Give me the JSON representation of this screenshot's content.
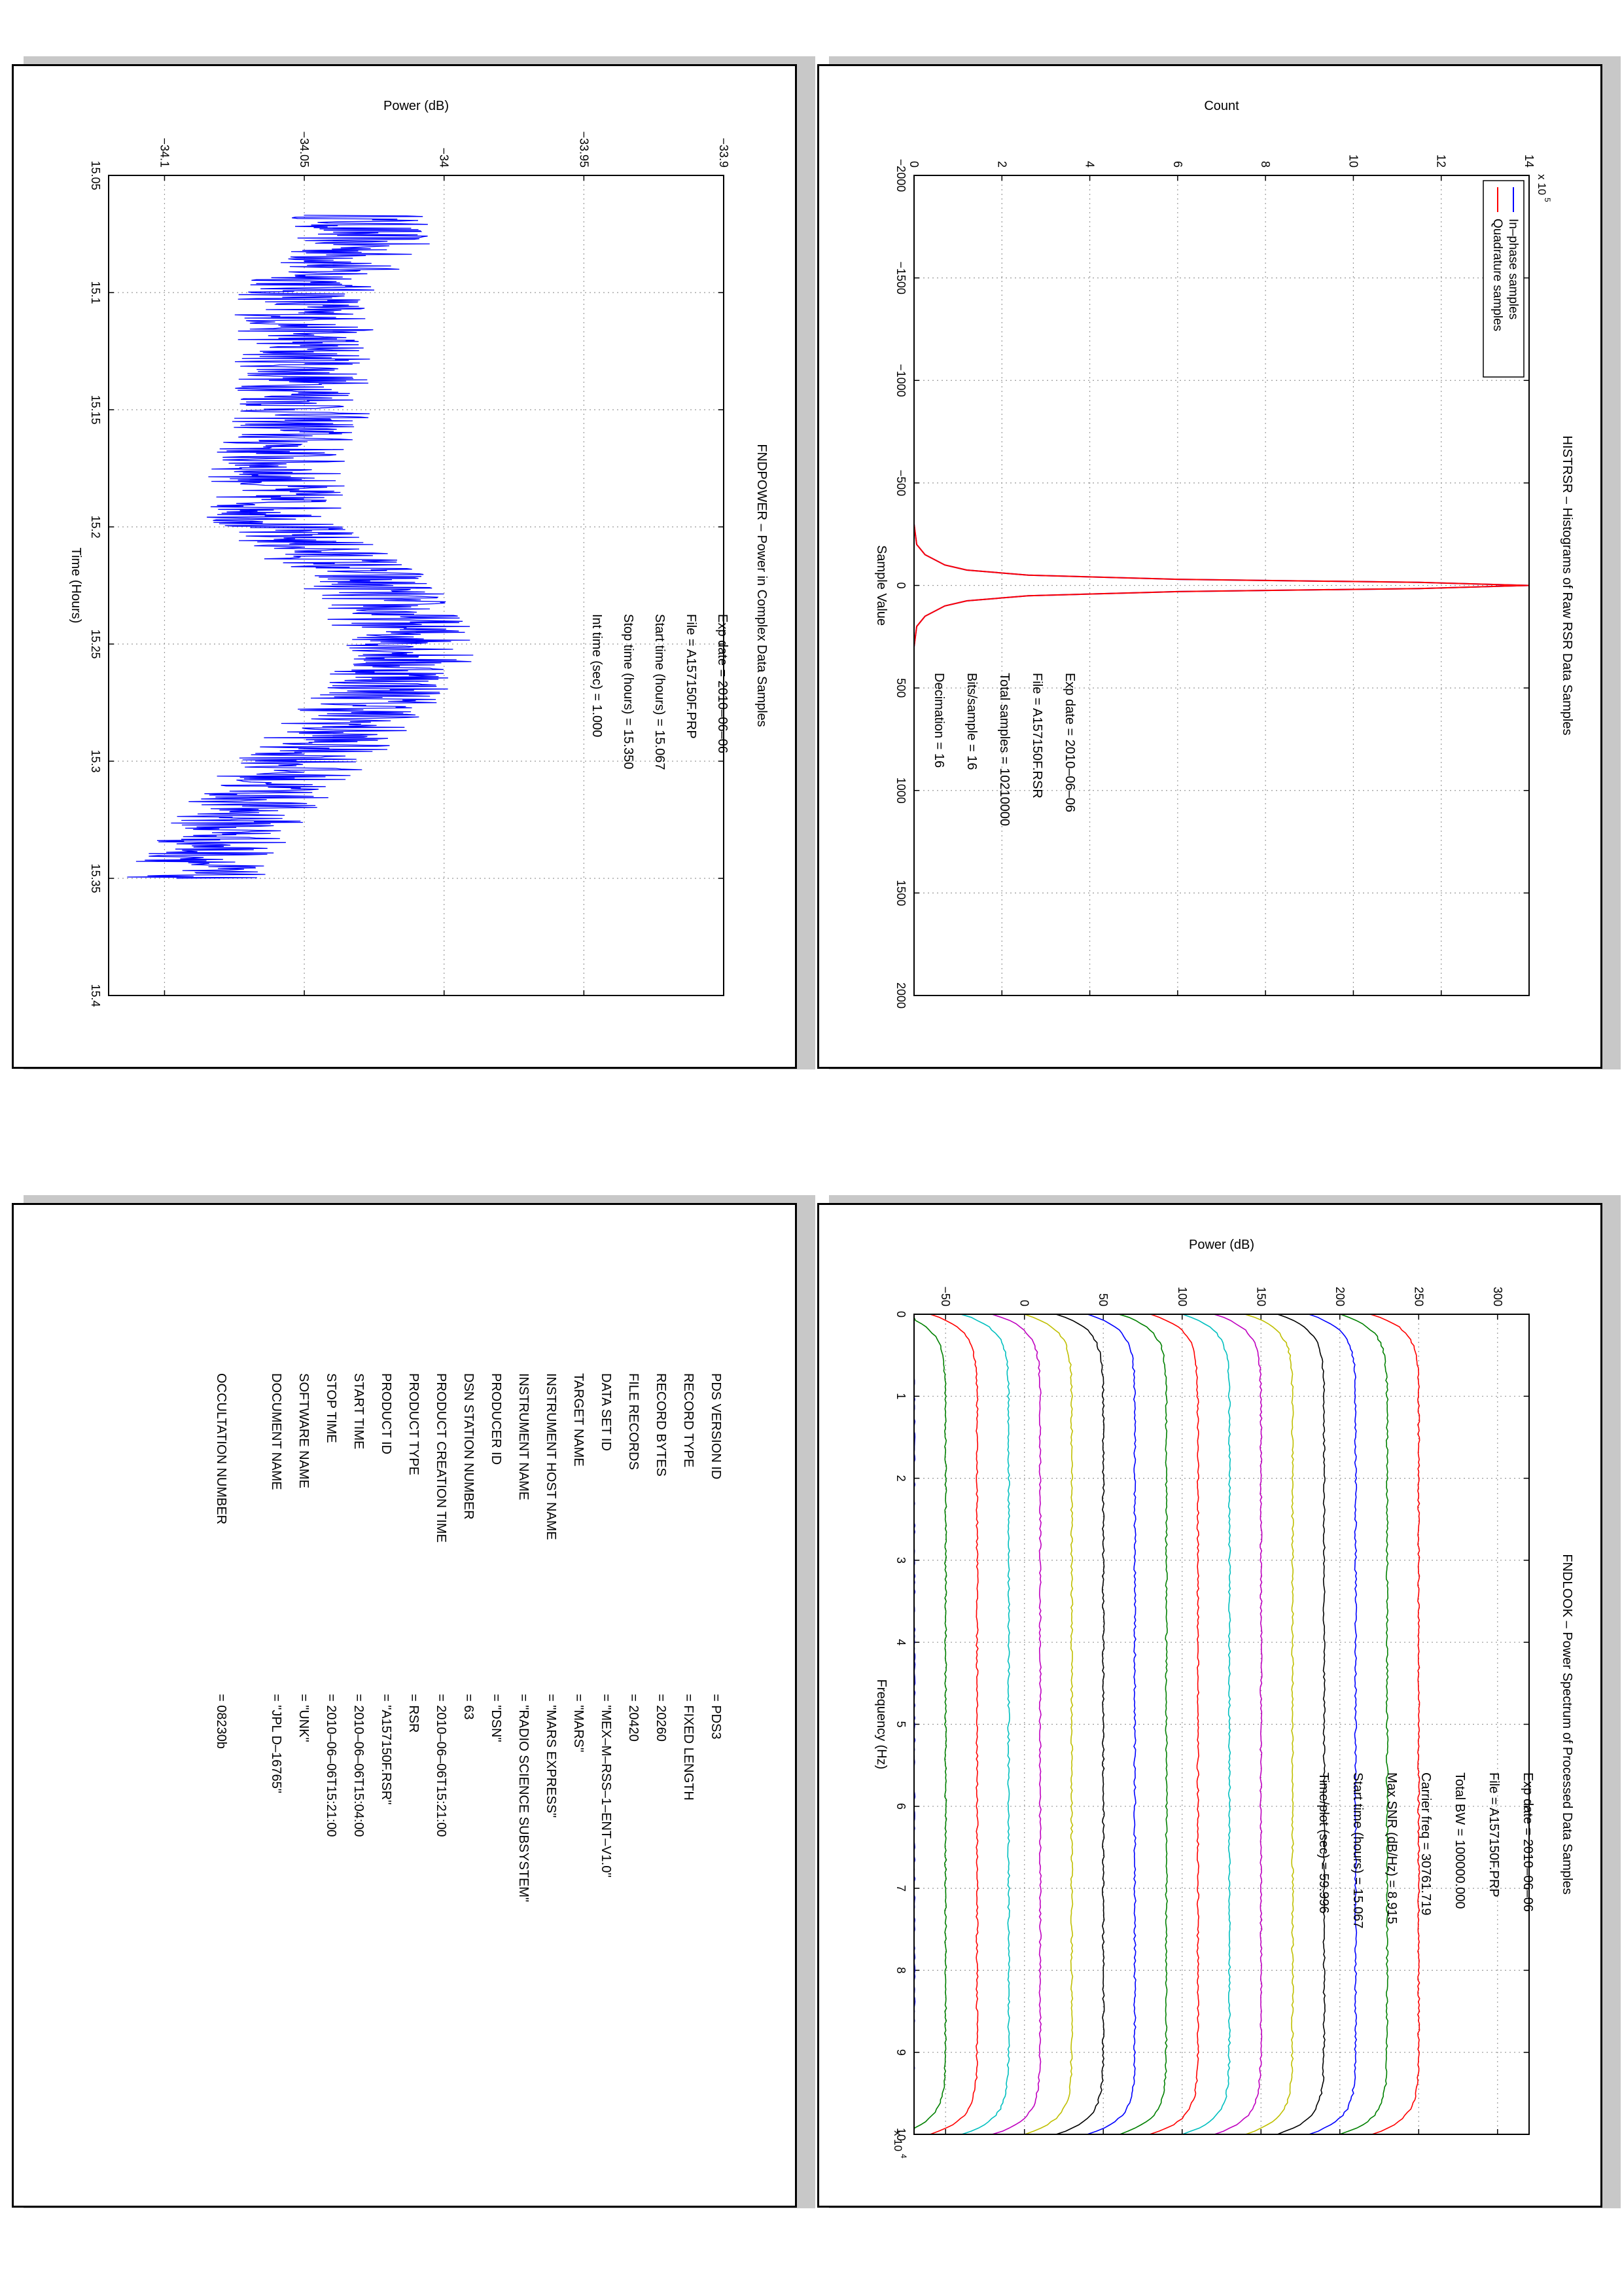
{
  "histrsr": {
    "title": "HISTRSR – Histograms of Raw RSR Data Samples",
    "xlabel": "Sample Value",
    "ylabel": "Count",
    "exponent": "x 10",
    "exponent_power": "5",
    "info": [
      "Exp date = 2010–06–06",
      "File = A157150F.RSR",
      "Total samples = 10210000",
      "Bits/sample    =       16",
      "Decimation    =       16"
    ]
  },
  "fndpower": {
    "title": "FNDPOWER – Power in Complex Data Samples",
    "xlabel": "Time (Hours)",
    "ylabel": "Power (dB)",
    "info": [
      "Exp date = 2010–06–06",
      "File = A157150F.PRP",
      "Start time (hours) = 15.067",
      "Stop time (hours) = 15.350",
      "Int time (sec) =       1.000"
    ]
  },
  "fndlook": {
    "title": "FNDLOOK – Power Spectrum of Processed Data Samples",
    "xlabel": "Frequency (Hz)",
    "ylabel": "Power (dB)",
    "exponent": "x 10",
    "exponent_power": "4",
    "info": [
      "Exp date = 2010–06–06",
      "File = A157150F.PRP",
      "Total BW =       100000.000",
      "Carrier freq =    30761.719",
      "Max SNR (dB/Hz) =       8.915",
      "Start time (hours) =    15.067",
      "Time/plot (sec) =      59.996"
    ]
  },
  "label_table": {
    "rows": [
      {
        "key": "PDS VERSION ID",
        "value": "=  PDS3"
      },
      {
        "key": "RECORD TYPE",
        "value": "=  FIXED LENGTH"
      },
      {
        "key": "RECORD BYTES",
        "value": "=  20260"
      },
      {
        "key": "FILE RECORDS",
        "value": "=  20420"
      },
      {
        "key": "DATA SET ID",
        "value": "=  \"MEX–M–RSS–1–ENT–V1.0\""
      },
      {
        "key": "TARGET NAME",
        "value": "=  \"MARS\""
      },
      {
        "key": "INSTRUMENT HOST NAME",
        "value": "=  \"MARS EXPRESS\""
      },
      {
        "key": "INSTRUMENT NAME",
        "value": "=  \"RADIO SCIENCE SUBSYSTEM\""
      },
      {
        "key": "PRODUCER ID",
        "value": "=  \"DSN\""
      },
      {
        "key": "DSN STATION NUMBER",
        "value": "=  63"
      },
      {
        "key": "PRODUCT CREATION TIME",
        "value": "=  2010–06–06T15:21:00"
      },
      {
        "key": "PRODUCT TYPE",
        "value": "=  RSR"
      },
      {
        "key": "PRODUCT ID",
        "value": "=  \"A157150F.RSR\""
      },
      {
        "key": "START TIME",
        "value": "=  2010–06–06T15:04:00"
      },
      {
        "key": "STOP TIME",
        "value": "=  2010–06–06T15:21:00"
      },
      {
        "key": "SOFTWARE NAME",
        "value": "=  \"UNK\""
      },
      {
        "key": "DOCUMENT NAME",
        "value": "=  \"JPL D–16765\""
      },
      {
        "key": "",
        "value": ""
      },
      {
        "key": "OCCULTATION NUMBER",
        "value": "=  08230b"
      }
    ]
  },
  "chart_data": [
    {
      "type": "line",
      "title": "HISTRSR – Histograms of Raw RSR Data Samples",
      "xlabel": "Sample Value",
      "ylabel": "Count",
      "xlim": [
        -2000,
        2000
      ],
      "ylim": [
        0,
        1400000
      ],
      "y_tick_scale": "x 10^5",
      "x_ticks": [
        -2000,
        -1500,
        -1000,
        -500,
        0,
        500,
        1000,
        1500,
        2000
      ],
      "y_ticks": [
        0,
        2,
        4,
        6,
        8,
        10,
        12,
        14
      ],
      "grid": true,
      "legend": "top-left",
      "series": [
        {
          "name": "In–phase samples",
          "color": "#0000ff",
          "x": [
            -2000,
            -300,
            -200,
            -150,
            -100,
            -75,
            -50,
            -30,
            -15,
            0,
            15,
            30,
            50,
            75,
            100,
            150,
            200,
            300,
            2000
          ],
          "y": [
            0,
            0,
            6000,
            25000,
            70000,
            120000,
            260000,
            600000,
            1150000,
            1400000,
            1150000,
            600000,
            260000,
            120000,
            70000,
            25000,
            6000,
            0,
            0
          ]
        },
        {
          "name": "Quadrature samples",
          "color": "#ff0000",
          "x": [
            -2000,
            -300,
            -200,
            -150,
            -100,
            -75,
            -50,
            -30,
            -15,
            0,
            15,
            30,
            50,
            75,
            100,
            150,
            200,
            300,
            2000
          ],
          "y": [
            0,
            0,
            6000,
            25000,
            70000,
            120000,
            260000,
            600000,
            1150000,
            1400000,
            1150000,
            600000,
            260000,
            120000,
            70000,
            25000,
            6000,
            0,
            0
          ]
        }
      ]
    },
    {
      "type": "line",
      "title": "FNDPOWER – Power in Complex Data Samples",
      "xlabel": "Time (Hours)",
      "ylabel": "Power (dB)",
      "xlim": [
        15.05,
        15.4
      ],
      "ylim": [
        -34.12,
        -33.9
      ],
      "x_ticks": [
        15.05,
        15.1,
        15.15,
        15.2,
        15.25,
        15.3,
        15.35,
        15.4
      ],
      "y_ticks": [
        -34.1,
        -34.05,
        -34,
        -33.95,
        -33.9
      ],
      "grid": true,
      "series": [
        {
          "color": "#0000ff",
          "x": [
            15.067,
            15.08,
            15.1,
            15.12,
            15.15,
            15.17,
            15.2,
            15.22,
            15.25,
            15.27,
            15.3,
            15.32,
            15.35
          ],
          "y": [
            -34.03,
            -34.03,
            -34.05,
            -34.05,
            -34.05,
            -34.06,
            -34.06,
            -34.03,
            -34.01,
            -34.02,
            -34.05,
            -34.07,
            -34.09
          ],
          "noise_amplitude": 0.025
        }
      ]
    },
    {
      "type": "line",
      "title": "FNDLOOK – Power Spectrum of Processed Data Samples",
      "xlabel": "Frequency (Hz)",
      "ylabel": "Power (dB)",
      "xlim": [
        0,
        100000
      ],
      "ylim": [
        -70,
        320
      ],
      "x_tick_scale": "x 10^4",
      "x_ticks": [
        0,
        1,
        2,
        3,
        4,
        5,
        6,
        7,
        8,
        9,
        10
      ],
      "y_ticks": [
        -50,
        0,
        50,
        100,
        150,
        200,
        250,
        300
      ],
      "grid": true,
      "series": [
        {
          "color": "#ff0000",
          "level": 250
        },
        {
          "color": "#008000",
          "level": 230
        },
        {
          "color": "#0000ff",
          "level": 210
        },
        {
          "color": "#000000",
          "level": 190
        },
        {
          "color": "#bfbf00",
          "level": 170
        },
        {
          "color": "#bf00bf",
          "level": 150
        },
        {
          "color": "#00bfbf",
          "level": 130
        },
        {
          "color": "#ff0000",
          "level": 110
        },
        {
          "color": "#008000",
          "level": 90
        },
        {
          "color": "#0000ff",
          "level": 70
        },
        {
          "color": "#000000",
          "level": 50
        },
        {
          "color": "#bfbf00",
          "level": 30
        },
        {
          "color": "#bf00bf",
          "level": 10
        },
        {
          "color": "#00bfbf",
          "level": -10
        },
        {
          "color": "#ff0000",
          "level": -30
        },
        {
          "color": "#008000",
          "level": -50
        },
        {
          "color": "#0000ff",
          "level": -70
        }
      ],
      "edge_drop_db": 30
    }
  ]
}
